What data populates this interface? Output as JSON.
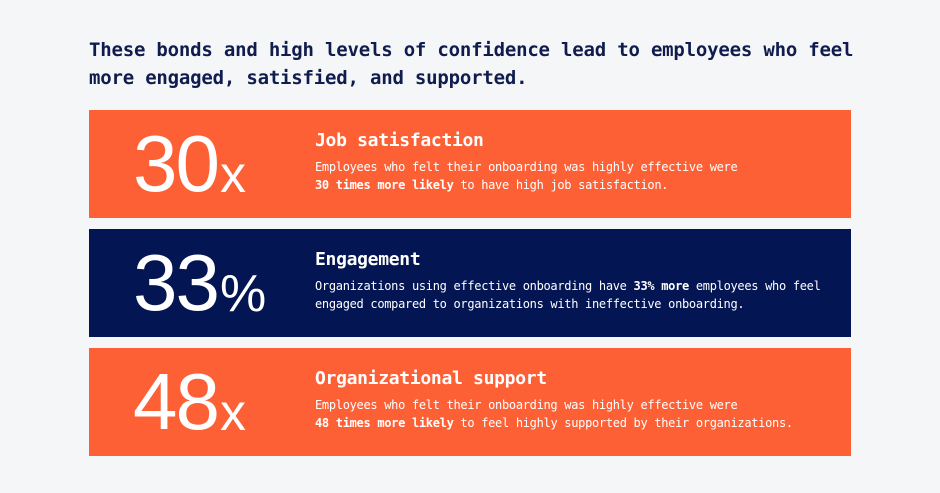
{
  "headline": "These bonds and high levels of confidence lead to employees who feel more engaged, satisfied, and supported.",
  "colors": {
    "background": "#f5f6f8",
    "headline": "#0f1c4d",
    "orange": "#fd6035",
    "navy": "#031552",
    "text_on_card": "#ffffff"
  },
  "cards": [
    {
      "stat_number": "30",
      "stat_unit": "x",
      "title": "Job satisfaction",
      "body_before": "Employees who felt their onboarding was highly effective were ",
      "body_bold": "30 times more likely",
      "body_after": " to have high job satisfaction."
    },
    {
      "stat_number": "33",
      "stat_unit": "%",
      "title": "Engagement",
      "body_before": "Organizations using effective onboarding have ",
      "body_bold": "33% more",
      "body_after": " employees who feel engaged compared to organizations with ineffective onboarding."
    },
    {
      "stat_number": "48",
      "stat_unit": "x",
      "title": "Organizational support",
      "body_before": "Employees who felt their onboarding was highly effective were ",
      "body_bold": "48 times more likely",
      "body_after": " to feel highly supported by their organizations."
    }
  ]
}
